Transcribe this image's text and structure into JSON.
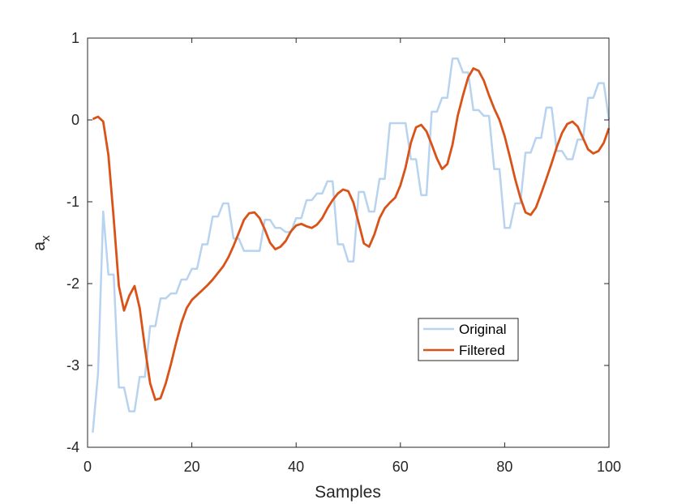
{
  "chart_data": {
    "type": "line",
    "title": "",
    "xlabel": "Samples",
    "ylabel_main": "a",
    "ylabel_sub": "x",
    "xlim": [
      0,
      100
    ],
    "ylim": [
      -4,
      1
    ],
    "xticks": [
      0,
      20,
      40,
      60,
      80,
      100
    ],
    "yticks": [
      -4,
      -3,
      -2,
      -1,
      0,
      1
    ],
    "xtick_labels": [
      "0",
      "20",
      "40",
      "60",
      "80",
      "100"
    ],
    "ytick_labels": [
      "-4",
      "-3",
      "-2",
      "-1",
      "0",
      "1"
    ],
    "grid": false,
    "legend_position": "inside lower-right",
    "series": [
      {
        "name": "Original",
        "color": "#b7d3ef",
        "x": [
          1,
          2,
          3,
          4,
          5,
          6,
          7,
          8,
          9,
          10,
          11,
          12,
          13,
          14,
          15,
          16,
          17,
          18,
          19,
          20,
          21,
          22,
          23,
          24,
          25,
          26,
          27,
          28,
          29,
          30,
          31,
          32,
          33,
          34,
          35,
          36,
          37,
          38,
          39,
          40,
          41,
          42,
          43,
          44,
          45,
          46,
          47,
          48,
          49,
          50,
          51,
          52,
          53,
          54,
          55,
          56,
          57,
          58,
          59,
          60,
          61,
          62,
          63,
          64,
          65,
          66,
          67,
          68,
          69,
          70,
          71,
          72,
          73,
          74,
          75,
          76,
          77,
          78,
          79,
          80,
          81,
          82,
          83,
          84,
          85,
          86,
          87,
          88,
          89,
          90,
          91,
          92,
          93,
          94,
          95,
          96,
          97,
          98,
          99,
          100
        ],
        "y": [
          -3.82,
          -3.1,
          -1.12,
          -1.89,
          -1.89,
          -3.27,
          -3.27,
          -3.56,
          -3.56,
          -3.14,
          -3.14,
          -2.52,
          -2.52,
          -2.18,
          -2.18,
          -2.12,
          -2.12,
          -1.95,
          -1.95,
          -1.82,
          -1.82,
          -1.52,
          -1.52,
          -1.18,
          -1.18,
          -1.02,
          -1.02,
          -1.45,
          -1.45,
          -1.6,
          -1.6,
          -1.6,
          -1.6,
          -1.22,
          -1.22,
          -1.32,
          -1.32,
          -1.37,
          -1.37,
          -1.2,
          -1.2,
          -0.98,
          -0.98,
          -0.9,
          -0.9,
          -0.75,
          -0.75,
          -1.52,
          -1.52,
          -1.73,
          -1.73,
          -0.88,
          -0.88,
          -1.12,
          -1.12,
          -0.72,
          -0.72,
          -0.04,
          -0.04,
          -0.04,
          -0.04,
          -0.48,
          -0.48,
          -0.92,
          -0.92,
          0.1,
          0.1,
          0.27,
          0.27,
          0.75,
          0.75,
          0.58,
          0.58,
          0.12,
          0.12,
          0.05,
          0.05,
          -0.6,
          -0.6,
          -1.32,
          -1.32,
          -1.02,
          -1.02,
          -0.4,
          -0.4,
          -0.22,
          -0.22,
          0.15,
          0.15,
          -0.38,
          -0.38,
          -0.48,
          -0.48,
          -0.24,
          -0.24,
          0.27,
          0.27,
          0.45,
          0.45,
          0.0
        ]
      },
      {
        "name": "Filtered",
        "color": "#d95319",
        "x": [
          1,
          2,
          3,
          4,
          5,
          6,
          7,
          8,
          9,
          10,
          11,
          12,
          13,
          14,
          15,
          16,
          17,
          18,
          19,
          20,
          21,
          22,
          23,
          24,
          25,
          26,
          27,
          28,
          29,
          30,
          31,
          32,
          33,
          34,
          35,
          36,
          37,
          38,
          39,
          40,
          41,
          42,
          43,
          44,
          45,
          46,
          47,
          48,
          49,
          50,
          51,
          52,
          53,
          54,
          55,
          56,
          57,
          58,
          59,
          60,
          61,
          62,
          63,
          64,
          65,
          66,
          67,
          68,
          69,
          70,
          71,
          72,
          73,
          74,
          75,
          76,
          77,
          78,
          79,
          80,
          81,
          82,
          83,
          84,
          85,
          86,
          87,
          88,
          89,
          90,
          91,
          92,
          93,
          94,
          95,
          96,
          97,
          98,
          99,
          100
        ],
        "y": [
          0.01,
          0.04,
          -0.02,
          -0.43,
          -1.2,
          -2.03,
          -2.33,
          -2.15,
          -2.03,
          -2.3,
          -2.78,
          -3.22,
          -3.42,
          -3.4,
          -3.22,
          -2.98,
          -2.72,
          -2.48,
          -2.3,
          -2.2,
          -2.14,
          -2.08,
          -2.02,
          -1.95,
          -1.87,
          -1.79,
          -1.68,
          -1.54,
          -1.38,
          -1.22,
          -1.14,
          -1.13,
          -1.2,
          -1.34,
          -1.5,
          -1.58,
          -1.55,
          -1.48,
          -1.36,
          -1.29,
          -1.27,
          -1.3,
          -1.32,
          -1.28,
          -1.2,
          -1.08,
          -0.98,
          -0.9,
          -0.85,
          -0.87,
          -1.01,
          -1.26,
          -1.51,
          -1.55,
          -1.4,
          -1.2,
          -1.08,
          -1.01,
          -0.95,
          -0.8,
          -0.58,
          -0.28,
          -0.09,
          -0.06,
          -0.14,
          -0.3,
          -0.47,
          -0.6,
          -0.54,
          -0.3,
          0.05,
          0.3,
          0.52,
          0.63,
          0.6,
          0.48,
          0.3,
          0.14,
          0.0,
          -0.2,
          -0.45,
          -0.72,
          -0.95,
          -1.13,
          -1.16,
          -1.07,
          -0.9,
          -0.72,
          -0.53,
          -0.33,
          -0.16,
          -0.05,
          -0.02,
          -0.08,
          -0.22,
          -0.36,
          -0.41,
          -0.38,
          -0.28,
          -0.1
        ]
      }
    ]
  }
}
